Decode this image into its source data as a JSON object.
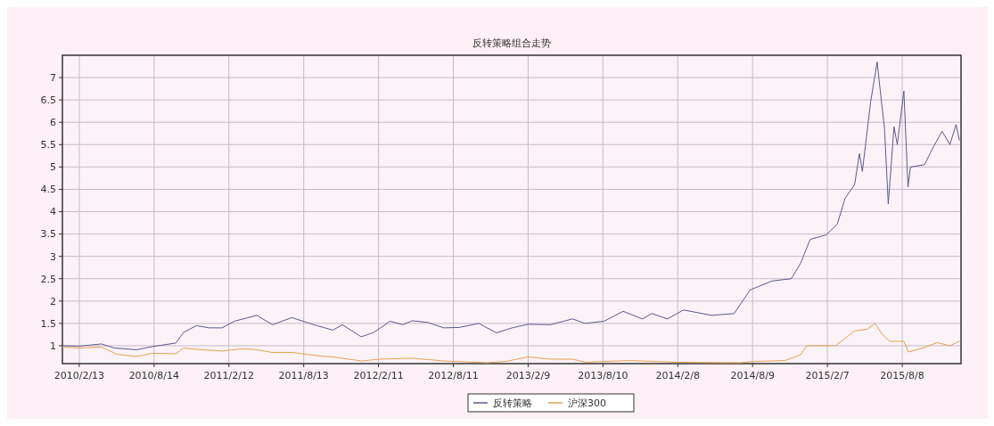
{
  "chart_data": {
    "type": "line",
    "title": "反转策略组合走势",
    "xlim": [
      "2010-01-03",
      "2015-12-29"
    ],
    "ylim": [
      0.6,
      7.5
    ],
    "xticks": [
      {
        "value": "2010-02-13",
        "label": "2010/2/13"
      },
      {
        "value": "2010-08-14",
        "label": "2010/8/14"
      },
      {
        "value": "2011-02-12",
        "label": "2011/2/12"
      },
      {
        "value": "2011-08-13",
        "label": "2011/8/13"
      },
      {
        "value": "2012-02-11",
        "label": "2012/2/11"
      },
      {
        "value": "2012-08-11",
        "label": "2012/8/11"
      },
      {
        "value": "2013-02-09",
        "label": "2013/2/9"
      },
      {
        "value": "2013-08-10",
        "label": "2013/8/10"
      },
      {
        "value": "2014-02-08",
        "label": "2014/2/8"
      },
      {
        "value": "2014-08-09",
        "label": "2014/8/9"
      },
      {
        "value": "2015-02-07",
        "label": "2015/2/7"
      },
      {
        "value": "2015-08-08",
        "label": "2015/8/8"
      }
    ],
    "yticks": [
      1,
      1.5,
      2,
      2.5,
      3,
      3.5,
      4,
      4.5,
      5,
      5.5,
      6,
      6.5,
      7
    ],
    "grid": true,
    "legend": "bottom",
    "line_style": "solid",
    "series": [
      {
        "name": "反转策略",
        "color": "#5a5a8c",
        "x": [
          "2010-01-04",
          "2010-02-13",
          "2010-04-08",
          "2010-05-09",
          "2010-07-02",
          "2010-08-09",
          "2010-10-06",
          "2010-10-25",
          "2010-11-25",
          "2010-12-26",
          "2011-01-26",
          "2011-02-26",
          "2011-04-21",
          "2011-05-29",
          "2011-07-15",
          "2011-09-14",
          "2011-10-23",
          "2011-11-15",
          "2011-12-31",
          "2012-01-31",
          "2012-03-10",
          "2012-04-10",
          "2012-05-03",
          "2012-06-10",
          "2012-07-19",
          "2012-08-26",
          "2012-10-12",
          "2012-11-01",
          "2012-11-24",
          "2013-01-01",
          "2013-02-09",
          "2013-04-04",
          "2013-05-28",
          "2013-06-28",
          "2013-08-13",
          "2013-09-28",
          "2013-11-14",
          "2013-12-07",
          "2014-01-14",
          "2014-02-22",
          "2014-05-02",
          "2014-06-25",
          "2014-08-03",
          "2014-09-26",
          "2014-11-11",
          "2014-12-04",
          "2014-12-27",
          "2015-02-04",
          "2015-03-03",
          "2015-03-22",
          "2015-04-14",
          "2015-04-26",
          "2015-05-03",
          "2015-05-23",
          "2015-06-08",
          "2015-06-18",
          "2015-06-26",
          "2015-07-05",
          "2015-07-19",
          "2015-07-27",
          "2015-08-12",
          "2015-08-22",
          "2015-08-28",
          "2015-10-01",
          "2015-10-24",
          "2015-11-13",
          "2015-12-02",
          "2015-12-17",
          "2015-12-25"
        ],
        "values": [
          1.0,
          0.99,
          1.04,
          0.95,
          0.91,
          0.98,
          1.06,
          1.3,
          1.45,
          1.4,
          1.4,
          1.55,
          1.68,
          1.47,
          1.63,
          1.45,
          1.35,
          1.47,
          1.2,
          1.3,
          1.55,
          1.47,
          1.56,
          1.52,
          1.4,
          1.41,
          1.5,
          1.4,
          1.29,
          1.4,
          1.48,
          1.47,
          1.6,
          1.5,
          1.55,
          1.77,
          1.6,
          1.72,
          1.6,
          1.8,
          1.68,
          1.72,
          2.25,
          2.45,
          2.5,
          2.85,
          3.38,
          3.48,
          3.72,
          4.3,
          4.6,
          5.3,
          4.9,
          6.45,
          7.35,
          6.5,
          5.85,
          4.17,
          5.9,
          5.5,
          6.7,
          4.55,
          5.0,
          5.05,
          5.47,
          5.8,
          5.5,
          5.95,
          5.6
        ]
      },
      {
        "name": "沪深300",
        "color": "#e8a050",
        "x": [
          "2010-01-04",
          "2010-02-13",
          "2010-04-08",
          "2010-05-16",
          "2010-07-02",
          "2010-08-09",
          "2010-10-06",
          "2010-10-25",
          "2010-11-25",
          "2011-01-26",
          "2011-03-13",
          "2011-04-13",
          "2011-05-29",
          "2011-07-15",
          "2011-09-14",
          "2011-10-23",
          "2011-12-31",
          "2012-02-15",
          "2012-05-03",
          "2012-07-19",
          "2012-11-01",
          "2012-12-17",
          "2013-02-09",
          "2013-04-04",
          "2013-05-28",
          "2013-06-28",
          "2013-10-14",
          "2014-02-06",
          "2014-07-10",
          "2014-08-17",
          "2014-10-27",
          "2014-12-04",
          "2014-12-19",
          "2015-02-27",
          "2015-04-14",
          "2015-05-15",
          "2015-06-03",
          "2015-06-19",
          "2015-07-08",
          "2015-08-12",
          "2015-08-23",
          "2015-10-01",
          "2015-11-01",
          "2015-12-02",
          "2015-12-25"
        ],
        "values": [
          0.97,
          0.95,
          0.97,
          0.81,
          0.76,
          0.83,
          0.82,
          0.95,
          0.92,
          0.88,
          0.93,
          0.92,
          0.85,
          0.85,
          0.78,
          0.75,
          0.66,
          0.7,
          0.72,
          0.66,
          0.62,
          0.65,
          0.75,
          0.7,
          0.7,
          0.63,
          0.67,
          0.63,
          0.62,
          0.65,
          0.67,
          0.8,
          1.0,
          1.0,
          1.33,
          1.37,
          1.5,
          1.27,
          1.1,
          1.1,
          0.86,
          0.96,
          1.07,
          1.0,
          1.1
        ]
      }
    ]
  }
}
